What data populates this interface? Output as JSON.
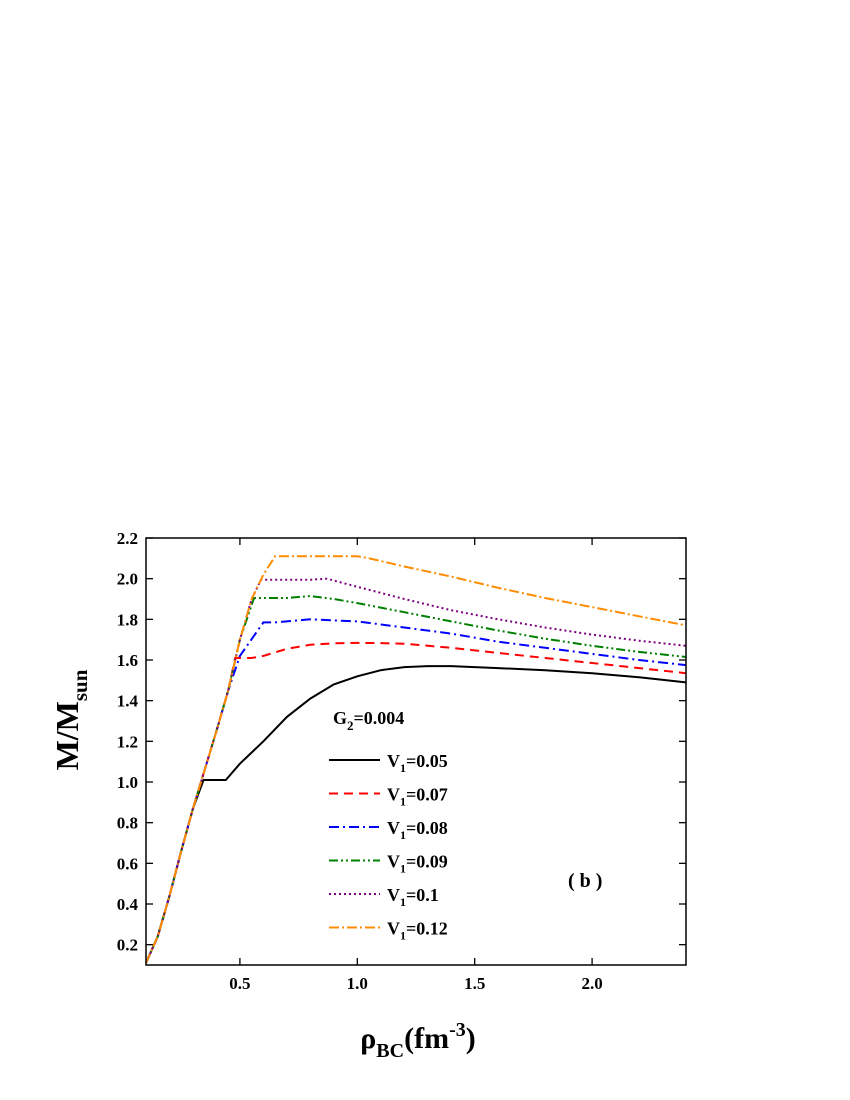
{
  "chart_data": {
    "type": "line",
    "xlabel": {
      "main": "ρ",
      "sub": "BC",
      "unit": "(fm",
      "sup": "-3",
      "close": ")"
    },
    "ylabel": {
      "main": "M/M",
      "sub": "sun"
    },
    "xlim": [
      0.1,
      2.4
    ],
    "ylim": [
      0.1,
      2.2
    ],
    "xticks": [
      0.5,
      1.0,
      1.5,
      2.0
    ],
    "xtick_labels": [
      "0.5",
      "1.0",
      "1.5",
      "2.0"
    ],
    "yticks": [
      0.2,
      0.4,
      0.6,
      0.8,
      1.0,
      1.2,
      1.4,
      1.6,
      1.8,
      2.0,
      2.2
    ],
    "ytick_labels": [
      "0.2",
      "0.4",
      "0.6",
      "0.8",
      "1.0",
      "1.2",
      "1.4",
      "1.6",
      "1.8",
      "2.0",
      "2.2"
    ],
    "legend_title": {
      "main": "G",
      "sub": "2",
      "rest": "=0.004"
    },
    "legend_position": "center",
    "annotation": "( b )",
    "grid": false,
    "series": [
      {
        "name": "V1=0.05",
        "legend": {
          "main": "V",
          "sub": "1",
          "rest": "=0.05"
        },
        "color": "#000000",
        "dash": "",
        "x": [
          0.1,
          0.15,
          0.2,
          0.25,
          0.3,
          0.345,
          0.44,
          0.5,
          0.6,
          0.7,
          0.8,
          0.9,
          1.0,
          1.1,
          1.2,
          1.3,
          1.4,
          1.5,
          1.6,
          1.8,
          2.0,
          2.2,
          2.4
        ],
        "y": [
          0.11,
          0.24,
          0.44,
          0.66,
          0.87,
          1.01,
          1.01,
          1.09,
          1.2,
          1.32,
          1.41,
          1.48,
          1.52,
          1.55,
          1.565,
          1.57,
          1.57,
          1.565,
          1.56,
          1.55,
          1.535,
          1.515,
          1.49
        ]
      },
      {
        "name": "V1=0.07",
        "legend": {
          "main": "V",
          "sub": "1",
          "rest": "=0.07"
        },
        "color": "#ff0000",
        "dash": "9,6",
        "x": [
          0.1,
          0.15,
          0.2,
          0.25,
          0.3,
          0.35,
          0.4,
          0.45,
          0.48,
          0.55,
          0.6,
          0.7,
          0.8,
          0.9,
          1.0,
          1.1,
          1.2,
          1.4,
          1.6,
          1.8,
          2.0,
          2.2,
          2.4
        ],
        "y": [
          0.11,
          0.24,
          0.44,
          0.66,
          0.87,
          1.06,
          1.25,
          1.45,
          1.61,
          1.61,
          1.62,
          1.655,
          1.675,
          1.682,
          1.684,
          1.683,
          1.68,
          1.66,
          1.635,
          1.61,
          1.585,
          1.56,
          1.535
        ]
      },
      {
        "name": "V1=0.08",
        "legend": {
          "main": "V",
          "sub": "1",
          "rest": "=0.08"
        },
        "color": "#0000ff",
        "dash": "10,4,2,4",
        "x": [
          0.1,
          0.15,
          0.2,
          0.25,
          0.3,
          0.35,
          0.4,
          0.45,
          0.5,
          0.6,
          0.65,
          0.8,
          0.9,
          1.0,
          1.2,
          1.4,
          1.6,
          1.8,
          2.0,
          2.2,
          2.4
        ],
        "y": [
          0.11,
          0.24,
          0.44,
          0.66,
          0.87,
          1.06,
          1.25,
          1.45,
          1.62,
          1.785,
          1.785,
          1.8,
          1.795,
          1.79,
          1.76,
          1.73,
          1.69,
          1.66,
          1.63,
          1.6,
          1.575
        ]
      },
      {
        "name": "V1=0.09",
        "legend": {
          "main": "V",
          "sub": "1",
          "rest": "=0.09"
        },
        "color": "#008000",
        "dash": "9,3,2,3,2,3",
        "x": [
          0.1,
          0.15,
          0.2,
          0.25,
          0.3,
          0.35,
          0.4,
          0.45,
          0.5,
          0.56,
          0.7,
          0.8,
          0.9,
          1.0,
          1.2,
          1.4,
          1.6,
          1.8,
          2.0,
          2.2,
          2.4
        ],
        "y": [
          0.11,
          0.24,
          0.44,
          0.66,
          0.87,
          1.06,
          1.25,
          1.45,
          1.7,
          1.905,
          1.905,
          1.915,
          1.9,
          1.88,
          1.835,
          1.79,
          1.745,
          1.705,
          1.67,
          1.64,
          1.615
        ]
      },
      {
        "name": "V1=0.1",
        "legend": {
          "main": "V",
          "sub": "1",
          "rest": "=0.1"
        },
        "color": "#800080",
        "dash": "2,3",
        "x": [
          0.1,
          0.15,
          0.2,
          0.25,
          0.3,
          0.35,
          0.4,
          0.45,
          0.5,
          0.55,
          0.59,
          0.8,
          0.87,
          1.0,
          1.2,
          1.4,
          1.6,
          1.8,
          2.0,
          2.2,
          2.4
        ],
        "y": [
          0.11,
          0.24,
          0.44,
          0.66,
          0.87,
          1.06,
          1.25,
          1.45,
          1.7,
          1.9,
          1.995,
          1.995,
          2.0,
          1.96,
          1.9,
          1.845,
          1.8,
          1.76,
          1.725,
          1.695,
          1.67
        ]
      },
      {
        "name": "V1=0.12",
        "legend": {
          "main": "V",
          "sub": "1",
          "rest": "=0.12"
        },
        "color": "#ff8c00",
        "dash": "10,3,2,3",
        "x": [
          0.1,
          0.15,
          0.2,
          0.25,
          0.3,
          0.35,
          0.4,
          0.45,
          0.5,
          0.55,
          0.6,
          0.65,
          1.0,
          1.05,
          1.2,
          1.4,
          1.6,
          1.8,
          2.0,
          2.2,
          2.4
        ],
        "y": [
          0.11,
          0.24,
          0.44,
          0.66,
          0.87,
          1.06,
          1.25,
          1.45,
          1.7,
          1.9,
          2.02,
          2.11,
          2.11,
          2.1,
          2.06,
          2.01,
          1.955,
          1.905,
          1.86,
          1.815,
          1.77
        ]
      }
    ]
  }
}
